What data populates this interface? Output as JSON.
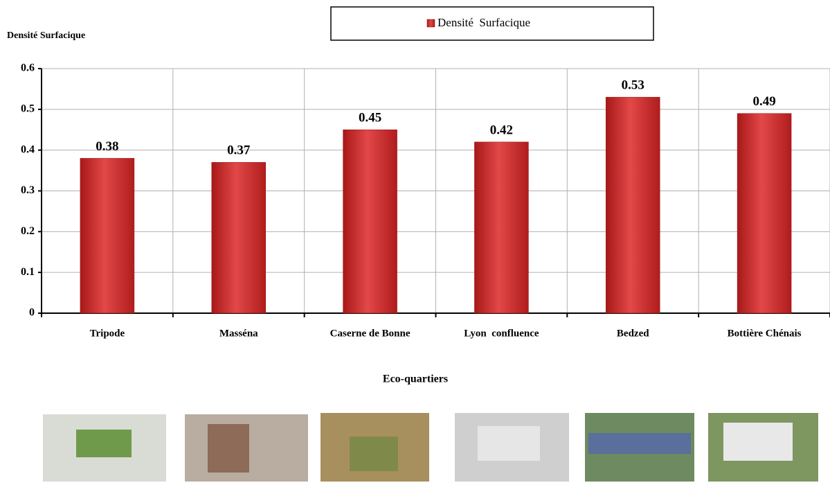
{
  "chart_data": {
    "type": "bar",
    "y_label": "Densité Surfacique",
    "x_label": "Eco-quartiers",
    "categories": [
      "Tripode",
      "Masséna",
      "Caserne de Bonne",
      "Lyon  confluence",
      "Bedzed",
      "Bottière Chénais"
    ],
    "series": [
      {
        "name": "Densité  Surfacique",
        "color": "#d83a3a",
        "values": [
          0.38,
          0.37,
          0.45,
          0.42,
          0.53,
          0.49
        ]
      }
    ],
    "ylim": [
      0,
      0.6
    ],
    "yticks": [
      0,
      0.1,
      0.2,
      0.3,
      0.4,
      0.5,
      0.6
    ],
    "grid": true
  }
}
